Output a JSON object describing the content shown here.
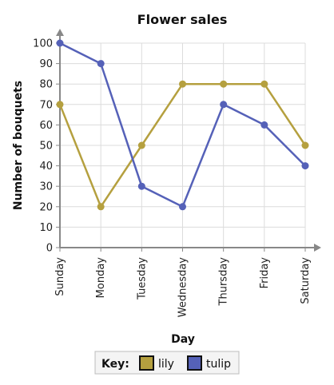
{
  "chart_data": {
    "type": "line",
    "title": "Flower sales",
    "xlabel": "Day",
    "ylabel": "Number of bouquets",
    "categories": [
      "Sunday",
      "Monday",
      "Tuesday",
      "Wednesday",
      "Thursday",
      "Friday",
      "Saturday"
    ],
    "ylim": [
      0,
      100
    ],
    "yticks": [
      "0",
      "10",
      "20",
      "30",
      "40",
      "50",
      "60",
      "70",
      "80",
      "90",
      "100"
    ],
    "grid": true,
    "series": [
      {
        "name": "lily",
        "color": "#b5a03f",
        "values": [
          70,
          20,
          50,
          80,
          80,
          80,
          50
        ]
      },
      {
        "name": "tulip",
        "color": "#5561b8",
        "values": [
          100,
          90,
          30,
          20,
          70,
          60,
          40
        ]
      }
    ],
    "legend": {
      "label": "Key:",
      "placement": "bottom"
    }
  }
}
